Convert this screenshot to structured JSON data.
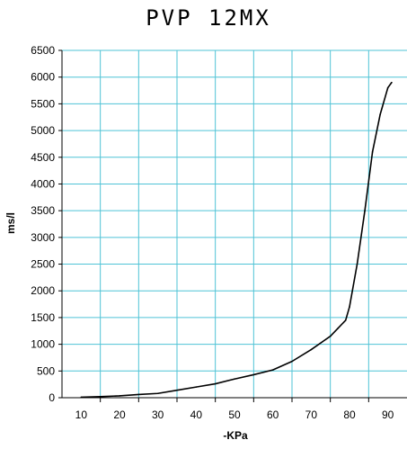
{
  "chart_data": {
    "type": "line",
    "title": "PVP 12MX",
    "xlabel": "-KPa",
    "ylabel": "ms/l",
    "xlim": [
      5,
      95
    ],
    "ylim": [
      0,
      6500
    ],
    "xticks": [
      10,
      20,
      30,
      40,
      50,
      60,
      70,
      80,
      90
    ],
    "yticks": [
      0,
      500,
      1000,
      1500,
      2000,
      2500,
      3000,
      3500,
      4000,
      4500,
      5000,
      5500,
      6000,
      6500
    ],
    "grid": true,
    "grid_color": "#4fc3d6",
    "line_color": "#000000",
    "series": [
      {
        "x": [
          10,
          15,
          20,
          25,
          30,
          35,
          40,
          45,
          50,
          55,
          60,
          65,
          70,
          73,
          75,
          77,
          79,
          80,
          82,
          84,
          86,
          88,
          90,
          91
        ],
        "values": [
          10,
          20,
          35,
          60,
          80,
          140,
          200,
          260,
          350,
          430,
          520,
          680,
          900,
          1050,
          1150,
          1300,
          1450,
          1700,
          2500,
          3500,
          4600,
          5300,
          5800,
          5900
        ]
      }
    ]
  }
}
